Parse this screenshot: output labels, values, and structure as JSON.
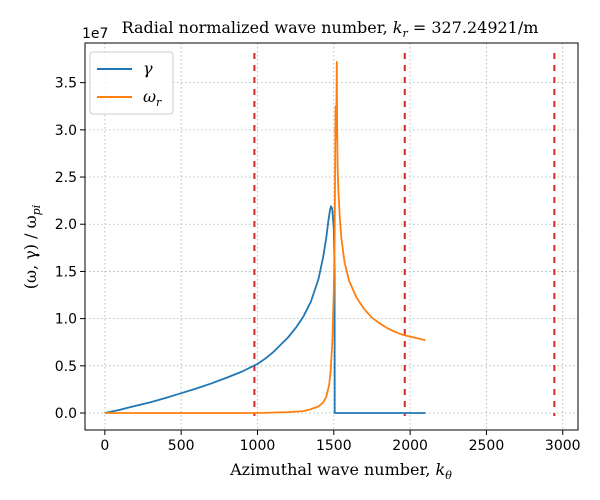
{
  "chart_data": {
    "type": "line",
    "title": "Radial normalized wave number, k_r = 327.24921/m",
    "title_parts": {
      "prefix": "Radial normalized wave number, ",
      "var": "k",
      "var_sub": "r",
      "suffix": " = 327.24921/m"
    },
    "xlabel": "Azimuthal wave number, k_θ",
    "xlabel_parts": {
      "prefix": "Azimuthal wave number, ",
      "var": "k",
      "var_sub": "θ"
    },
    "ylabel": "(ω, γ) / ω_pi",
    "ylabel_parts": {
      "prefix": "(ω, γ) / ω",
      "var_sub": "pi"
    },
    "y_multiplier": "1e7",
    "xlim": [
      -130,
      3100
    ],
    "ylim": [
      -0.18,
      3.92
    ],
    "x_ticks": [
      0,
      500,
      1000,
      1500,
      2000,
      2500,
      3000
    ],
    "y_ticks": [
      0.0,
      0.5,
      1.0,
      1.5,
      2.0,
      2.5,
      3.0,
      3.5
    ],
    "grid": true,
    "grid_style": "dotted",
    "legend_position": "top-left",
    "vlines": [
      980,
      1965,
      2945
    ],
    "vline_color": "#d62728",
    "series": [
      {
        "name": "γ",
        "name_parts": {
          "sym": "γ",
          "sub": ""
        },
        "color": "#1f77b4",
        "x": [
          0,
          100,
          200,
          300,
          400,
          500,
          600,
          700,
          800,
          900,
          1000,
          1050,
          1100,
          1150,
          1200,
          1250,
          1300,
          1350,
          1400,
          1430,
          1450,
          1465,
          1475,
          1482,
          1490,
          1500,
          1505,
          1506,
          1510,
          1600,
          1800,
          2000,
          2100
        ],
        "values": [
          0.0,
          0.035,
          0.075,
          0.115,
          0.16,
          0.21,
          0.26,
          0.315,
          0.375,
          0.44,
          0.52,
          0.575,
          0.64,
          0.72,
          0.8,
          0.9,
          1.02,
          1.18,
          1.42,
          1.65,
          1.85,
          2.04,
          2.15,
          2.19,
          2.16,
          1.95,
          1.5,
          0.0,
          0.0,
          0.0,
          0.0,
          0.0,
          0.0
        ]
      },
      {
        "name": "ω_r",
        "name_parts": {
          "sym": "ω",
          "sub": "r"
        },
        "color": "#ff7f0e",
        "x": [
          0,
          500,
          1000,
          1200,
          1300,
          1350,
          1400,
          1430,
          1450,
          1470,
          1480,
          1490,
          1500,
          1505,
          1508,
          1510,
          1512,
          1513,
          1515,
          1518,
          1520,
          1522,
          1525,
          1530,
          1540,
          1550,
          1570,
          1600,
          1650,
          1700,
          1750,
          1800,
          1850,
          1900,
          1950,
          2000,
          2050,
          2100
        ],
        "values": [
          0.0,
          0.0,
          0.0,
          0.01,
          0.02,
          0.04,
          0.07,
          0.11,
          0.17,
          0.3,
          0.45,
          0.75,
          1.3,
          1.8,
          2.4,
          2.9,
          3.25,
          3.2,
          2.9,
          3.3,
          3.72,
          3.1,
          2.6,
          2.35,
          2.05,
          1.85,
          1.6,
          1.4,
          1.22,
          1.1,
          1.01,
          0.95,
          0.9,
          0.86,
          0.83,
          0.81,
          0.79,
          0.77
        ]
      }
    ]
  }
}
